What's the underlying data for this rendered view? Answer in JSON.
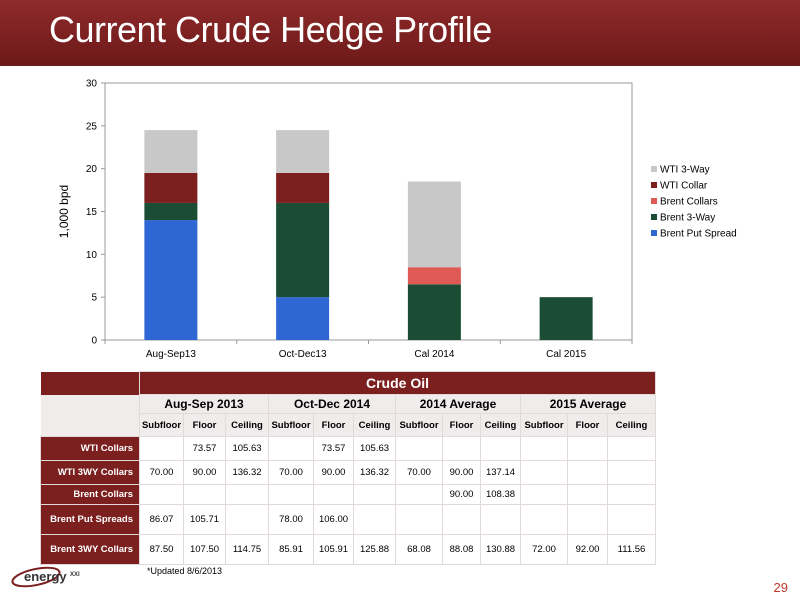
{
  "slide": {
    "title": "Current Crude Hedge Profile",
    "footnote": "*Updated 8/6/2013",
    "page_number": "29",
    "logo_text": "energyXXI"
  },
  "colors": {
    "title_bar": "#7b1f1f",
    "wti_3way": "#c8c8c8",
    "wti_collar": "#7b1f1f",
    "brent_collars": "#e05a55",
    "brent_3way": "#1a4d33",
    "brent_put_spread": "#2e66d4",
    "page_number": "#c0392b"
  },
  "chart_data": {
    "type": "bar",
    "stacked": true,
    "ylabel": "1,000 bpd",
    "xlabel": "",
    "ylim": [
      0,
      30
    ],
    "yticks": [
      0,
      5,
      10,
      15,
      20,
      25,
      30
    ],
    "grid": false,
    "legend_position": "right",
    "categories": [
      "Aug-Sep13",
      "Oct-Dec13",
      "Cal 2014",
      "Cal 2015"
    ],
    "series": [
      {
        "name": "Brent Put Spread",
        "color": "#2e66d4",
        "values": [
          14,
          5,
          0,
          0
        ]
      },
      {
        "name": "Brent 3-Way",
        "color": "#1a4d33",
        "values": [
          2,
          11,
          6.5,
          5
        ]
      },
      {
        "name": "Brent Collars",
        "color": "#e05a55",
        "values": [
          0,
          0,
          2,
          0
        ]
      },
      {
        "name": "WTI Collar",
        "color": "#7b1f1f",
        "values": [
          3.5,
          3.5,
          0,
          0
        ]
      },
      {
        "name": "WTI 3-Way",
        "color": "#c8c8c8",
        "values": [
          5,
          5,
          10,
          0
        ]
      }
    ],
    "legend_order": [
      "WTI 3-Way",
      "WTI Collar",
      "Brent Collars",
      "Brent 3-Way",
      "Brent Put Spread"
    ]
  },
  "table": {
    "title": "Crude Oil",
    "groups": [
      "Aug-Sep 2013",
      "Oct-Dec 2014",
      "2014 Average",
      "2015 Average"
    ],
    "subheaders": [
      "Subfloor",
      "Floor",
      "Ceiling"
    ],
    "rows": [
      {
        "label": "WTI Collars",
        "cells": [
          "",
          "73.57",
          "105.63",
          "",
          "73.57",
          "105.63",
          "",
          "",
          "",
          "",
          "",
          ""
        ]
      },
      {
        "label": "WTI 3WY Collars",
        "cells": [
          "70.00",
          "90.00",
          "136.32",
          "70.00",
          "90.00",
          "136.32",
          "70.00",
          "90.00",
          "137.14",
          "",
          "",
          ""
        ]
      },
      {
        "label": "Brent Collars",
        "cells": [
          "",
          "",
          "",
          "",
          "",
          "",
          "",
          "90.00",
          "108.38",
          "",
          "",
          ""
        ]
      },
      {
        "label": "Brent Put Spreads",
        "cells": [
          "86.07",
          "105.71",
          "",
          "78.00",
          "106.00",
          "",
          "",
          "",
          "",
          "",
          "",
          ""
        ]
      },
      {
        "label": "Brent 3WY Collars",
        "cells": [
          "87.50",
          "107.50",
          "114.75",
          "85.91",
          "105.91",
          "125.88",
          "68.08",
          "88.08",
          "130.88",
          "72.00",
          "92.00",
          "111.56"
        ]
      }
    ]
  }
}
